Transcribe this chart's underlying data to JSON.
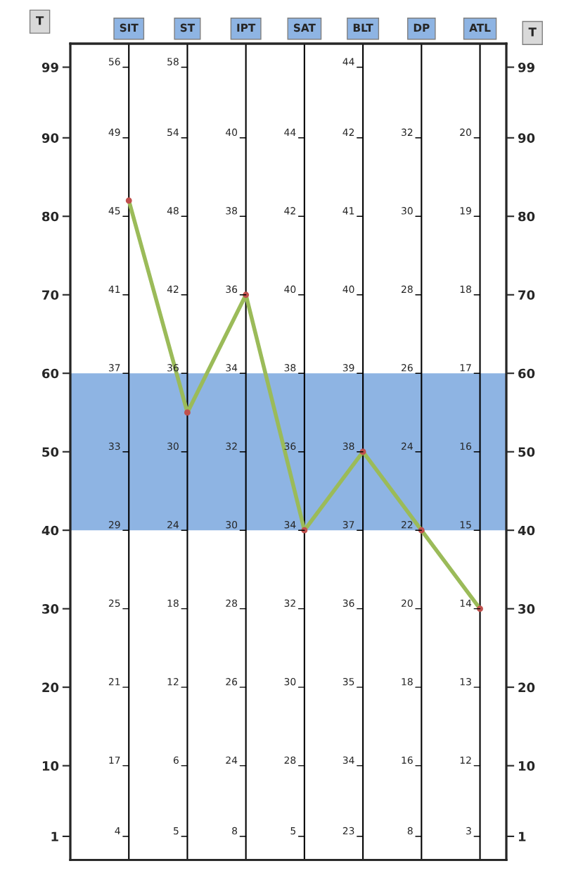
{
  "chart_data": {
    "type": "line",
    "categories": [
      "SIT",
      "ST",
      "IPT",
      "SAT",
      "BLT",
      "DP",
      "ATL"
    ],
    "ylabel": "T",
    "y2label": "T",
    "series": [
      {
        "color": "#9bbb59",
        "values": [
          82,
          55,
          70,
          40,
          50,
          40,
          30
        ],
        "marker": "none"
      },
      {
        "type": "scatter",
        "color": "#c0504d",
        "values": [
          82,
          55,
          70,
          40,
          50,
          40,
          30
        ]
      }
    ],
    "ylim": [
      -2,
      102
    ],
    "yticks": [
      1,
      10,
      20,
      30,
      40,
      50,
      60,
      70,
      80,
      90,
      99
    ],
    "y2lim": [
      -2,
      102
    ],
    "y2ticks": [
      1,
      10,
      20,
      30,
      40,
      50,
      60,
      70,
      80,
      90,
      99
    ],
    "grid": "x",
    "line_style": "solid",
    "bands": [
      {
        "axis": "y",
        "from": 40,
        "to": 60,
        "color": "#8eb4e3"
      }
    ],
    "annotations": [
      "4",
      "17",
      "21",
      "25",
      "29",
      "33",
      "37",
      "41",
      "45",
      "49",
      "56",
      "5",
      "6",
      "12",
      "18",
      "24",
      "30",
      "36",
      "42",
      "48",
      "54",
      "58",
      "8",
      "24",
      "26",
      "28",
      "30",
      "32",
      "34",
      "36",
      "38",
      "40",
      null,
      "5",
      "28",
      "30",
      "32",
      "34",
      "36",
      "38",
      "40",
      "42",
      "44",
      null,
      "23",
      "34",
      "35",
      "36",
      "37",
      "38",
      "39",
      "40",
      "41",
      "42",
      "44",
      "8",
      "16",
      "18",
      "20",
      "22",
      "24",
      "26",
      "28",
      "30",
      "32",
      null,
      "3",
      "12",
      "13",
      "14",
      "15",
      "16",
      "17",
      "18",
      "19",
      "20",
      null
    ]
  }
}
